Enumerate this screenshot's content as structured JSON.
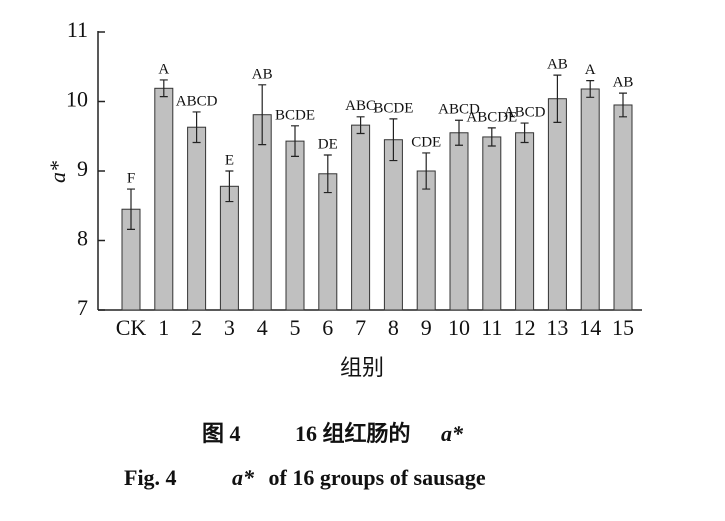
{
  "chart_data": {
    "type": "bar",
    "ylabel": "a*",
    "xlabel": "组别",
    "categories": [
      "CK",
      "1",
      "2",
      "3",
      "4",
      "5",
      "6",
      "7",
      "8",
      "9",
      "10",
      "11",
      "12",
      "13",
      "14",
      "15"
    ],
    "values": [
      8.45,
      10.19,
      9.63,
      8.78,
      9.81,
      9.43,
      8.96,
      9.66,
      9.45,
      9.0,
      9.55,
      9.49,
      9.55,
      10.04,
      10.18,
      9.95
    ],
    "errors": [
      0.29,
      0.12,
      0.22,
      0.22,
      0.43,
      0.22,
      0.27,
      0.12,
      0.3,
      0.26,
      0.18,
      0.13,
      0.14,
      0.34,
      0.12,
      0.17
    ],
    "annotations": [
      "F",
      "A",
      "ABCD",
      "E",
      "AB",
      "BCDE",
      "DE",
      "ABC",
      "BCDE",
      "CDE",
      "ABCD",
      "ABCDE",
      "ABCD",
      "AB",
      "A",
      "AB"
    ],
    "color": "#c0c0c0",
    "ylim": [
      7,
      11
    ],
    "yticks": [
      7,
      8,
      9,
      10,
      11
    ]
  },
  "caption": {
    "cn": [
      "图 4",
      "16 组红肠的",
      "a*"
    ],
    "en": [
      "Fig. 4",
      "a*",
      " of 16 groups of sausage"
    ]
  }
}
